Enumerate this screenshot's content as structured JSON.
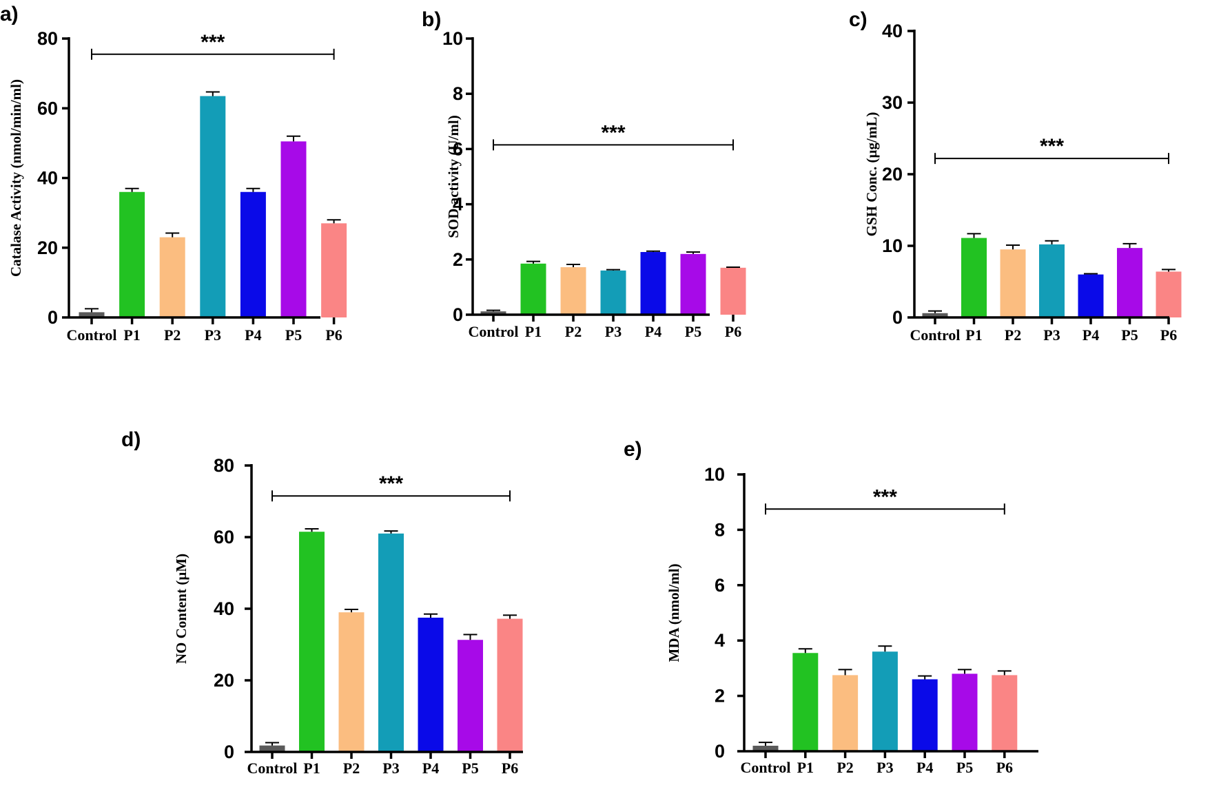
{
  "colors": {
    "Control": "#5a5a5a",
    "P1": "#22c222",
    "P2": "#fbbd80",
    "P3": "#139db7",
    "P4": "#0a0ae8",
    "P5": "#a70ae8",
    "P6": "#fa8585"
  },
  "chart_data": [
    {
      "type": "bar",
      "panel": "a)",
      "ylabel": "Catalase Activity (nmol/min/ml)",
      "categories": [
        "Control",
        "P1",
        "P2",
        "P3",
        "P4",
        "P5",
        "P6"
      ],
      "values": [
        1.5,
        36,
        23,
        63.5,
        36,
        50.5,
        27
      ],
      "errors": [
        1.0,
        1.0,
        1.2,
        1.2,
        1.0,
        1.5,
        1.0
      ],
      "ylim": [
        0,
        80
      ],
      "yticks": [
        0,
        20,
        40,
        60,
        80
      ],
      "significance": {
        "label": "***",
        "y": 75.5,
        "from": "Control",
        "to": "P6"
      }
    },
    {
      "type": "bar",
      "panel": "b)",
      "ylabel": "SOD activity (U/ml)",
      "categories": [
        "Control",
        "P1",
        "P2",
        "P3",
        "P4",
        "P5",
        "P6"
      ],
      "values": [
        0.12,
        1.85,
        1.72,
        1.6,
        2.27,
        2.2,
        1.7
      ],
      "errors": [
        0.04,
        0.08,
        0.1,
        0.03,
        0.03,
        0.07,
        0.02
      ],
      "ylim": [
        0,
        10
      ],
      "yticks": [
        0,
        2,
        4,
        6,
        8,
        10
      ],
      "significance": {
        "label": "***",
        "y": 6.15,
        "from": "Control",
        "to": "P6"
      }
    },
    {
      "type": "bar",
      "panel": "c)",
      "ylabel": "GSH Conc. (µg/mL)",
      "categories": [
        "Control",
        "P1",
        "P2",
        "P3",
        "P4",
        "P5",
        "P6"
      ],
      "values": [
        0.6,
        11.1,
        9.5,
        10.2,
        6.0,
        9.7,
        6.4
      ],
      "errors": [
        0.3,
        0.6,
        0.6,
        0.5,
        0.1,
        0.6,
        0.3
      ],
      "ylim": [
        0,
        40
      ],
      "yticks": [
        0,
        10,
        20,
        30,
        40
      ],
      "significance": {
        "label": "***",
        "y": 22.2,
        "from": "Control",
        "to": "P6"
      }
    },
    {
      "type": "bar",
      "panel": "d)",
      "ylabel": "NO Content (µM)",
      "categories": [
        "Control",
        "P1",
        "P2",
        "P3",
        "P4",
        "P5",
        "P6"
      ],
      "values": [
        1.8,
        61.5,
        39,
        61,
        37.5,
        31.3,
        37.2
      ],
      "errors": [
        0.8,
        0.8,
        0.8,
        0.7,
        1.0,
        1.5,
        1.0
      ],
      "ylim": [
        0,
        80
      ],
      "yticks": [
        0,
        20,
        40,
        60,
        80
      ],
      "significance": {
        "label": "***",
        "y": 71.5,
        "from": "Control",
        "to": "P6"
      }
    },
    {
      "type": "bar",
      "panel": "e)",
      "ylabel": "MDA (nmol/ml)",
      "categories": [
        "Control",
        "P1",
        "P2",
        "P3",
        "P4",
        "P5",
        "P6"
      ],
      "values": [
        0.2,
        3.55,
        2.75,
        3.6,
        2.6,
        2.8,
        2.75
      ],
      "errors": [
        0.12,
        0.15,
        0.2,
        0.2,
        0.12,
        0.15,
        0.15
      ],
      "ylim": [
        0,
        10
      ],
      "yticks": [
        0,
        2,
        4,
        6,
        8,
        10
      ],
      "significance": {
        "label": "***",
        "y": 8.75,
        "from": "Control",
        "to": "P6"
      }
    }
  ]
}
